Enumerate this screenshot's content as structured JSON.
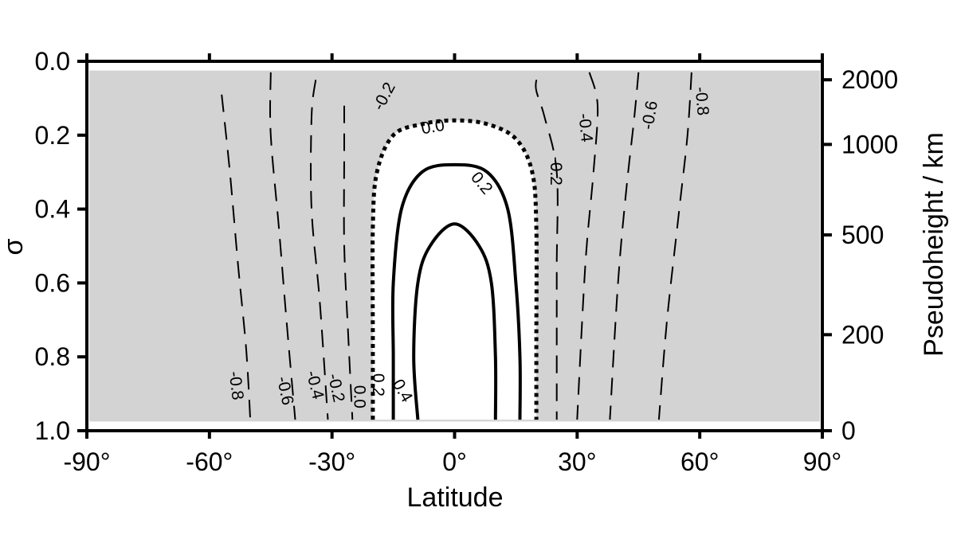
{
  "chart_data": {
    "type": "contour",
    "title": "",
    "xlabel": "Latitude",
    "ylabel": "σ",
    "y2label": "Pseudoheight / km",
    "xlim": [
      -90,
      90
    ],
    "ylim": [
      1.0,
      0.0
    ],
    "x_ticks": [
      -90,
      -60,
      -30,
      0,
      30,
      60,
      90
    ],
    "x_tick_labels": [
      "-90°",
      "-60°",
      "-30°",
      "0°",
      "30°",
      "60°",
      "90°"
    ],
    "y_ticks": [
      0.0,
      0.2,
      0.4,
      0.6,
      0.8,
      1.0
    ],
    "y_tick_labels": [
      "0.0",
      "0.2",
      "0.4",
      "0.6",
      "0.8",
      "1.0"
    ],
    "y2_ticks": [
      {
        "sigma": 0.05,
        "label": "2000"
      },
      {
        "sigma": 0.225,
        "label": "1000"
      },
      {
        "sigma": 0.47,
        "label": "500"
      },
      {
        "sigma": 0.74,
        "label": "200"
      },
      {
        "sigma": 1.0,
        "label": "0"
      }
    ],
    "shading": {
      "fill": "#d3d3d3",
      "meaning": "negative values shaded"
    },
    "contours": [
      {
        "level": -0.8,
        "style": "dashed",
        "points": [
          [
            -57,
            0.09
          ],
          [
            -55,
            0.3
          ],
          [
            -53,
            0.55
          ],
          [
            -51,
            0.78
          ],
          [
            -50,
            0.97
          ]
        ]
      },
      {
        "level": -0.6,
        "style": "dashed",
        "points": [
          [
            -45,
            0.03
          ],
          [
            -45,
            0.2
          ],
          [
            -43,
            0.45
          ],
          [
            -41,
            0.72
          ],
          [
            -39,
            0.97
          ]
        ]
      },
      {
        "level": -0.4,
        "style": "dashed",
        "points": [
          [
            -34,
            0.05
          ],
          [
            -35,
            0.15
          ],
          [
            -35,
            0.4
          ],
          [
            -33,
            0.65
          ],
          [
            -31,
            0.97
          ]
        ]
      },
      {
        "level": -0.2,
        "style": "dashed",
        "points": [
          [
            -27,
            0.12
          ],
          [
            -27,
            0.25
          ],
          [
            -27,
            0.5
          ],
          [
            -26,
            0.75
          ],
          [
            -25,
            0.97
          ]
        ]
      },
      {
        "level": 0.0,
        "style": "dotted",
        "points": [
          [
            -20,
            0.97
          ],
          [
            -20,
            0.75
          ],
          [
            -20,
            0.45
          ],
          [
            -19,
            0.3
          ],
          [
            -15,
            0.2
          ],
          [
            -8,
            0.17
          ],
          [
            0,
            0.16
          ],
          [
            8,
            0.17
          ],
          [
            15,
            0.21
          ],
          [
            19,
            0.3
          ],
          [
            20,
            0.45
          ],
          [
            20,
            0.75
          ],
          [
            20,
            0.97
          ]
        ]
      },
      {
        "level": 0.2,
        "style": "solid",
        "points": [
          [
            -15,
            0.97
          ],
          [
            -15,
            0.8
          ],
          [
            -15,
            0.6
          ],
          [
            -13,
            0.4
          ],
          [
            -8,
            0.3
          ],
          [
            0,
            0.28
          ],
          [
            8,
            0.3
          ],
          [
            13,
            0.4
          ],
          [
            15,
            0.6
          ],
          [
            16,
            0.8
          ],
          [
            16,
            0.97
          ]
        ]
      },
      {
        "level": 0.4,
        "style": "solid",
        "points": [
          [
            -9,
            0.97
          ],
          [
            -10,
            0.8
          ],
          [
            -9,
            0.6
          ],
          [
            -6,
            0.5
          ],
          [
            0,
            0.44
          ],
          [
            6,
            0.5
          ],
          [
            9,
            0.6
          ],
          [
            10,
            0.8
          ],
          [
            10,
            0.97
          ]
        ]
      },
      {
        "level": -0.2,
        "style": "dashed",
        "points": [
          [
            20,
            0.05
          ],
          [
            20,
            0.08
          ],
          [
            22,
            0.15
          ],
          [
            25,
            0.3
          ],
          [
            25,
            0.55
          ],
          [
            25,
            0.75
          ],
          [
            25,
            0.97
          ]
        ]
      },
      {
        "level": -0.4,
        "style": "dashed",
        "points": [
          [
            33,
            0.03
          ],
          [
            35,
            0.12
          ],
          [
            34,
            0.3
          ],
          [
            32,
            0.55
          ],
          [
            30,
            0.97
          ]
        ]
      },
      {
        "level": -0.6,
        "style": "dashed",
        "points": [
          [
            45,
            0.03
          ],
          [
            44,
            0.15
          ],
          [
            42,
            0.35
          ],
          [
            40,
            0.6
          ],
          [
            38,
            0.97
          ]
        ]
      },
      {
        "level": -0.8,
        "style": "dashed",
        "points": [
          [
            58,
            0.03
          ],
          [
            57,
            0.2
          ],
          [
            55,
            0.4
          ],
          [
            52,
            0.7
          ],
          [
            50,
            0.97
          ]
        ]
      }
    ],
    "contour_labels": [
      {
        "text": "-0.8",
        "x": -53.5,
        "y": 0.878,
        "angle": 83
      },
      {
        "text": "-0.6",
        "x": -41.5,
        "y": 0.892,
        "angle": 78
      },
      {
        "text": "-0.4",
        "x": -34.2,
        "y": 0.876,
        "angle": 76
      },
      {
        "text": "-0.2",
        "x": -29.0,
        "y": 0.884,
        "angle": 78
      },
      {
        "text": "0.0",
        "x": -23.3,
        "y": 0.908,
        "angle": 90
      },
      {
        "text": "0.2",
        "x": -18.7,
        "y": 0.876,
        "angle": 90
      },
      {
        "text": "0.4",
        "x": -12.8,
        "y": 0.892,
        "angle": 60
      },
      {
        "text": "-0.2",
        "x": -17.2,
        "y": 0.095,
        "angle": -62
      },
      {
        "text": "0.0",
        "x": -5.3,
        "y": 0.178,
        "angle": -10
      },
      {
        "text": "0.2",
        "x": 6.6,
        "y": 0.33,
        "angle": 50
      },
      {
        "text": "-0.2",
        "x": 24.8,
        "y": 0.297,
        "angle": 90
      },
      {
        "text": "-0.4",
        "x": 32.0,
        "y": 0.18,
        "angle": 84
      },
      {
        "text": "-0.6",
        "x": 47.8,
        "y": 0.146,
        "angle": -80
      },
      {
        "text": "-0.8",
        "x": 60.5,
        "y": 0.108,
        "angle": 85
      }
    ]
  }
}
